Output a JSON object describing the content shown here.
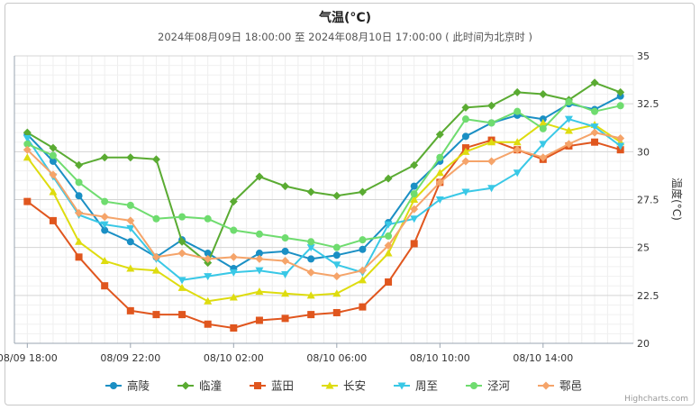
{
  "chart_data": {
    "type": "line",
    "title": "气温(°C)",
    "subtitle": "2024年08月09日 18:00:00 至 2024年08月10日 17:00:00 ( 此时间为北京时 )",
    "ylabel": "温度(°C)",
    "xlabel": "",
    "ylim": [
      20,
      35
    ],
    "yticks": [
      "20",
      "22.5",
      "25",
      "27.5",
      "30",
      "32.5",
      "35"
    ],
    "x": [
      "08/09 18:00",
      "08/09 19:00",
      "08/09 20:00",
      "08/09 21:00",
      "08/09 22:00",
      "08/09 23:00",
      "08/10 00:00",
      "08/10 01:00",
      "08/10 02:00",
      "08/10 03:00",
      "08/10 04:00",
      "08/10 05:00",
      "08/10 06:00",
      "08/10 07:00",
      "08/10 08:00",
      "08/10 09:00",
      "08/10 10:00",
      "08/10 11:00",
      "08/10 12:00",
      "08/10 13:00",
      "08/10 14:00",
      "08/10 15:00",
      "08/10 16:00",
      "08/10 17:00"
    ],
    "xtick_labels": [
      "08/09 18:00",
      "08/09 22:00",
      "08/10 02:00",
      "08/10 06:00",
      "08/10 10:00",
      "08/10 14:00"
    ],
    "grid": true,
    "legend_position": "bottom",
    "series": [
      {
        "name": "高陵",
        "color": "#1a8fc4",
        "marker": "circle",
        "values": [
          30.9,
          29.5,
          27.7,
          25.9,
          25.3,
          24.5,
          25.4,
          24.7,
          23.9,
          24.7,
          24.8,
          24.4,
          24.6,
          24.9,
          26.3,
          28.2,
          29.5,
          30.8,
          31.5,
          31.9,
          31.7,
          32.5,
          32.2,
          32.9
        ]
      },
      {
        "name": "临潼",
        "color": "#5aab32",
        "marker": "diamond",
        "values": [
          31.0,
          30.2,
          29.3,
          29.7,
          29.7,
          29.6,
          25.3,
          24.2,
          27.4,
          28.7,
          28.2,
          27.9,
          27.7,
          27.9,
          28.6,
          29.3,
          30.9,
          32.3,
          32.4,
          33.1,
          33.0,
          32.7,
          33.6,
          33.1
        ]
      },
      {
        "name": "蓝田",
        "color": "#e0561e",
        "marker": "square",
        "values": [
          27.4,
          26.4,
          24.5,
          23.0,
          21.7,
          21.5,
          21.5,
          21.0,
          20.8,
          21.2,
          21.3,
          21.5,
          21.6,
          21.9,
          23.2,
          25.2,
          28.4,
          30.2,
          30.6,
          30.1,
          29.6,
          30.3,
          30.5,
          30.1
        ]
      },
      {
        "name": "长安",
        "color": "#dedc0f",
        "marker": "triangle",
        "values": [
          29.7,
          27.9,
          25.3,
          24.3,
          23.9,
          23.8,
          22.9,
          22.2,
          22.4,
          22.7,
          22.6,
          22.5,
          22.6,
          23.3,
          24.7,
          27.5,
          28.9,
          30.0,
          30.5,
          30.5,
          31.5,
          31.1,
          31.4,
          30.5
        ]
      },
      {
        "name": "周至",
        "color": "#39c8e6",
        "marker": "triangle-down",
        "values": [
          30.7,
          28.7,
          26.7,
          26.2,
          26.0,
          24.4,
          23.3,
          23.5,
          23.7,
          23.8,
          23.6,
          25.0,
          24.1,
          23.7,
          26.2,
          26.5,
          27.5,
          27.9,
          28.1,
          28.9,
          30.4,
          31.7,
          31.3,
          30.3
        ]
      },
      {
        "name": "泾河",
        "color": "#6fdc6f",
        "marker": "circle",
        "values": [
          30.4,
          29.8,
          28.4,
          27.4,
          27.2,
          26.5,
          26.6,
          26.5,
          25.9,
          25.7,
          25.5,
          25.3,
          25.0,
          25.4,
          25.6,
          27.8,
          29.7,
          31.7,
          31.5,
          32.1,
          31.2,
          32.6,
          32.1,
          32.4
        ]
      },
      {
        "name": "鄠邑",
        "color": "#f5a46a",
        "marker": "diamond",
        "values": [
          30.1,
          28.8,
          26.8,
          26.6,
          26.4,
          24.5,
          24.7,
          24.4,
          24.5,
          24.4,
          24.3,
          23.7,
          23.5,
          23.8,
          25.1,
          27.0,
          28.4,
          29.5,
          29.5,
          30.1,
          29.7,
          30.4,
          31.0,
          30.7
        ]
      }
    ]
  },
  "credits": "Highcharts.com"
}
